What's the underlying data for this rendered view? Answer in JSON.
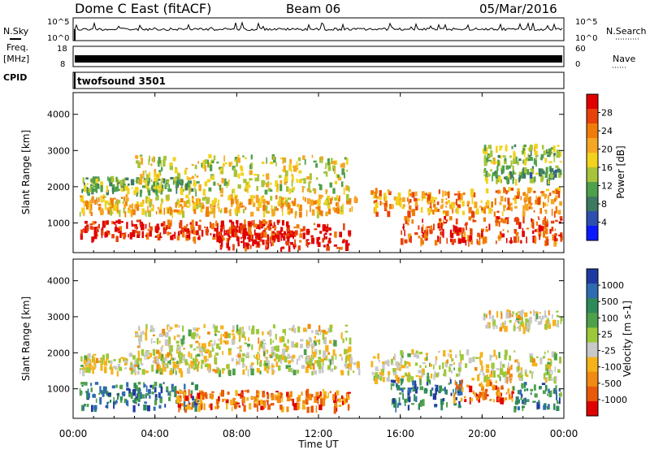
{
  "header": {
    "title": "Dome C East (fitACF)",
    "beam": "Beam 06",
    "date": "05/Mar/2016"
  },
  "left_labels": {
    "nsky": "N.Sky",
    "freq_line1": "Freq.",
    "freq_line2": "[MHz]",
    "cpid": "CPID"
  },
  "right_labels": {
    "nsearch": "N.Search",
    "nave": "Nave"
  },
  "noise_panel": {
    "left_ticks": [
      "10^5",
      "10^0"
    ],
    "right_ticks": [
      "10^5",
      "10^0"
    ]
  },
  "freq_panel": {
    "left_ticks": [
      "18",
      "8"
    ],
    "right_ticks": [
      "60",
      "0"
    ]
  },
  "cpid_text": "twofsound 3501",
  "chart_data": [
    {
      "type": "heatmap",
      "name": "power-panel",
      "ylabel": "Slant Range [km]",
      "yticks": [
        1000,
        2000,
        3000,
        4000
      ],
      "ylim": [
        180,
        4600
      ],
      "colorbar_label": "Power [dB]",
      "colorbar_ticks": [
        "4",
        "8",
        "12",
        "16",
        "20",
        "24",
        "28"
      ],
      "colors": [
        "#0a1aff",
        "#2d4fb0",
        "#3c7a62",
        "#4fa04a",
        "#a8c43a",
        "#f2d21c",
        "#f5a623",
        "#f07d0a",
        "#e8420a",
        "#e00000"
      ],
      "blobs": [
        {
          "t0": 0.3,
          "t1": 13.8,
          "r0": 1300,
          "r1": 1800,
          "level": 0.62
        },
        {
          "t0": 0.3,
          "t1": 10.5,
          "r0": 600,
          "r1": 1100,
          "level": 0.9
        },
        {
          "t0": 7.0,
          "t1": 13.5,
          "r0": 300,
          "r1": 1000,
          "level": 0.95
        },
        {
          "t0": 3.0,
          "t1": 13.5,
          "r0": 1900,
          "r1": 2900,
          "level": 0.5
        },
        {
          "t0": 0.3,
          "t1": 6.0,
          "r0": 1900,
          "r1": 2300,
          "level": 0.4
        },
        {
          "t0": 14.5,
          "t1": 24.0,
          "r0": 1300,
          "r1": 2000,
          "level": 0.7
        },
        {
          "t0": 16.0,
          "t1": 24.0,
          "r0": 500,
          "r1": 1200,
          "level": 0.85
        },
        {
          "t0": 20.0,
          "t1": 24.0,
          "r0": 2700,
          "r1": 3200,
          "level": 0.45
        },
        {
          "t0": 20.0,
          "t1": 24.0,
          "r0": 2200,
          "r1": 2600,
          "level": 0.35
        }
      ]
    },
    {
      "type": "heatmap",
      "name": "velocity-panel",
      "ylabel": "Slant Range [km]",
      "yticks": [
        1000,
        2000,
        3000,
        4000
      ],
      "ylim": [
        180,
        4600
      ],
      "colorbar_label": "Velocity [m s-1]",
      "colorbar_ticks": [
        "1000",
        "500",
        "100",
        "25",
        "-25",
        "-100",
        "-500",
        "-1000"
      ],
      "colors": [
        "#1e3aa0",
        "#2f6bb0",
        "#2e8a5a",
        "#4fa04a",
        "#9dc83a",
        "#c8c8c8",
        "#f5b21a",
        "#f08a12",
        "#e85a0a",
        "#e00000"
      ],
      "blobs": [
        {
          "t0": 0.3,
          "t1": 14.0,
          "r0": 1500,
          "r1": 2000,
          "level": 0.55
        },
        {
          "t0": 0.3,
          "t1": 6.0,
          "r0": 500,
          "r1": 1200,
          "level": 0.22
        },
        {
          "t0": 5.0,
          "t1": 13.5,
          "r0": 500,
          "r1": 1000,
          "level": 0.78
        },
        {
          "t0": 3.0,
          "t1": 13.5,
          "r0": 2000,
          "r1": 2800,
          "level": 0.55
        },
        {
          "t0": 14.5,
          "t1": 24.0,
          "r0": 1300,
          "r1": 2100,
          "level": 0.55
        },
        {
          "t0": 15.5,
          "t1": 19.0,
          "r0": 500,
          "r1": 1300,
          "level": 0.2
        },
        {
          "t0": 18.5,
          "t1": 21.5,
          "r0": 700,
          "r1": 1300,
          "level": 0.8
        },
        {
          "t0": 21.5,
          "t1": 24.0,
          "r0": 500,
          "r1": 1200,
          "level": 0.25
        },
        {
          "t0": 20.0,
          "t1": 24.0,
          "r0": 2700,
          "r1": 3200,
          "level": 0.55
        }
      ]
    }
  ],
  "x_axis": {
    "label": "Time UT",
    "ticks": [
      "00:00",
      "04:00",
      "08:00",
      "12:00",
      "16:00",
      "20:00",
      "00:00"
    ]
  }
}
